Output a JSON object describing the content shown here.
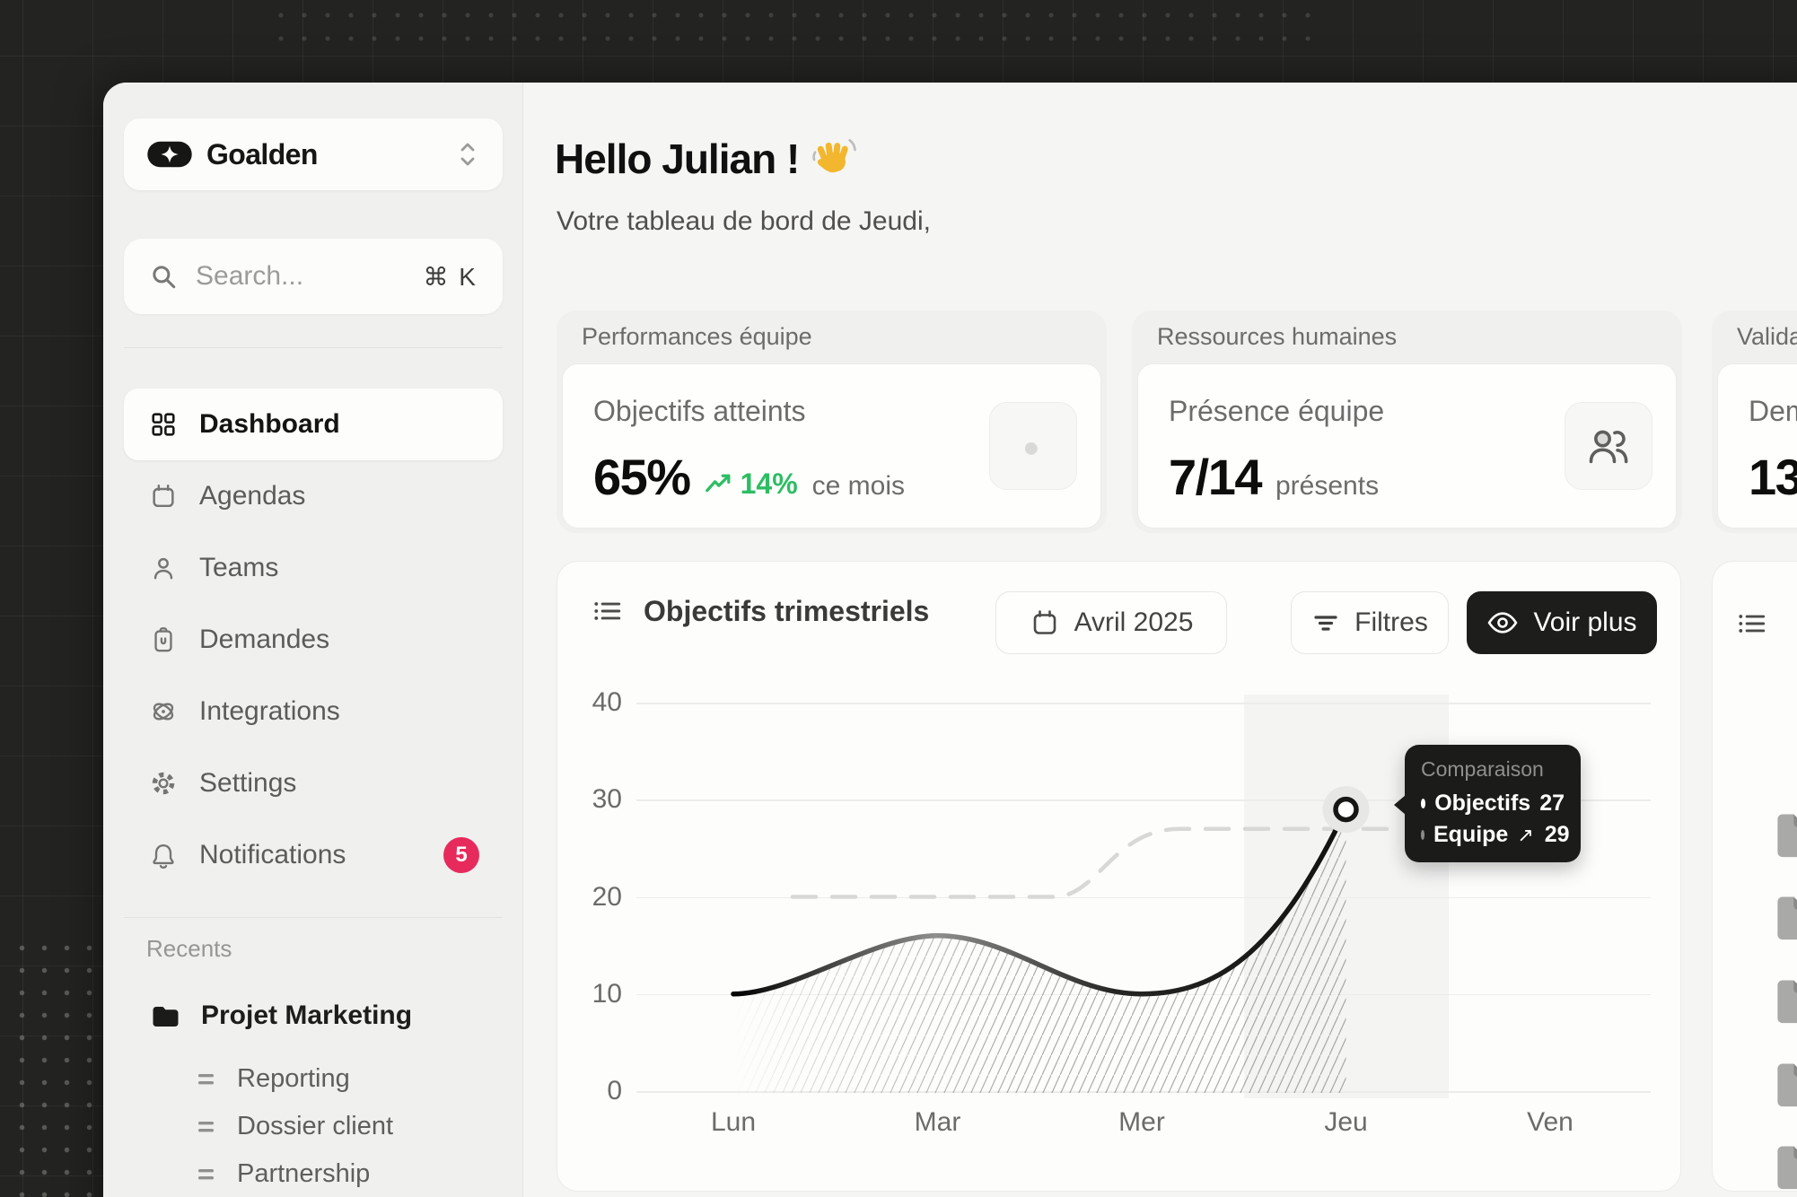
{
  "app": {
    "name": "Goalden"
  },
  "sidebar": {
    "search": {
      "placeholder": "Search...",
      "shortcut": "⌘ K"
    },
    "nav": [
      {
        "label": "Dashboard",
        "icon": "grid-icon",
        "active": true
      },
      {
        "label": "Agendas",
        "icon": "calendar-icon"
      },
      {
        "label": "Teams",
        "icon": "user-icon"
      },
      {
        "label": "Demandes",
        "icon": "clipboard-icon"
      },
      {
        "label": "Integrations",
        "icon": "atom-icon"
      },
      {
        "label": "Settings",
        "icon": "gear-icon"
      },
      {
        "label": "Notifications",
        "icon": "bell-icon",
        "badge": "5"
      }
    ],
    "recents": {
      "label": "Recents",
      "project": "Projet Marketing",
      "items": [
        "Reporting",
        "Dossier client",
        "Partnership"
      ]
    }
  },
  "header": {
    "greeting": "Hello Julian !",
    "wave_emoji": "👋",
    "subtitle": "Votre tableau de bord de Jeudi,"
  },
  "stat_cards": [
    {
      "header": "Performances équipe",
      "label": "Objectifs atteints",
      "value": "65%",
      "trend": "14%",
      "trend_note": "ce mois",
      "icon": "target-icon"
    },
    {
      "header": "Ressources humaines",
      "label": "Présence équipe",
      "value": "7/14",
      "value_note": "présents",
      "icon": "users-icon"
    },
    {
      "header": "Valida",
      "label": "Dem",
      "value": "13"
    }
  ],
  "chart_card": {
    "date_button": "Avril 2025",
    "filters_button": "Filtres",
    "more_button": "Voir plus"
  },
  "chart_data": {
    "type": "line",
    "title": "Objectifs trimestriels",
    "period": "Avril 2025",
    "x_categories": [
      "Lun",
      "Mar",
      "Mer",
      "Jeu",
      "Ven"
    ],
    "y_ticks": [
      40,
      30,
      20,
      10,
      0
    ],
    "ylim": [
      0,
      40
    ],
    "grid": "horizontal",
    "legend_position": "tooltip",
    "series": [
      {
        "name": "Objectifs",
        "style": "dashed",
        "color": "#d8d8d6",
        "values": [
          null,
          20,
          24,
          27,
          null
        ]
      },
      {
        "name": "Equipe",
        "style": "solid-gradient",
        "color": "#141412",
        "fill": "hatch",
        "values": [
          10,
          16,
          10,
          29,
          null
        ]
      }
    ],
    "highlight": {
      "category": "Jeu",
      "band": true,
      "tooltip": {
        "title": "Comparaison",
        "rows": [
          {
            "series": "Objectifs",
            "marker": "filled-dot",
            "value": 27
          },
          {
            "series": "Equipe",
            "marker": "hollow-dot",
            "trend": "up",
            "value": 29
          }
        ]
      }
    }
  },
  "colors": {
    "backdrop": "#232321",
    "surface": "#f5f5f3",
    "sidebar": "#f0f0ee",
    "card": "#fdfdfc",
    "accent_dark": "#1d1d1b",
    "badge": "#e72a5c",
    "positive_green": "#2dbd63"
  }
}
